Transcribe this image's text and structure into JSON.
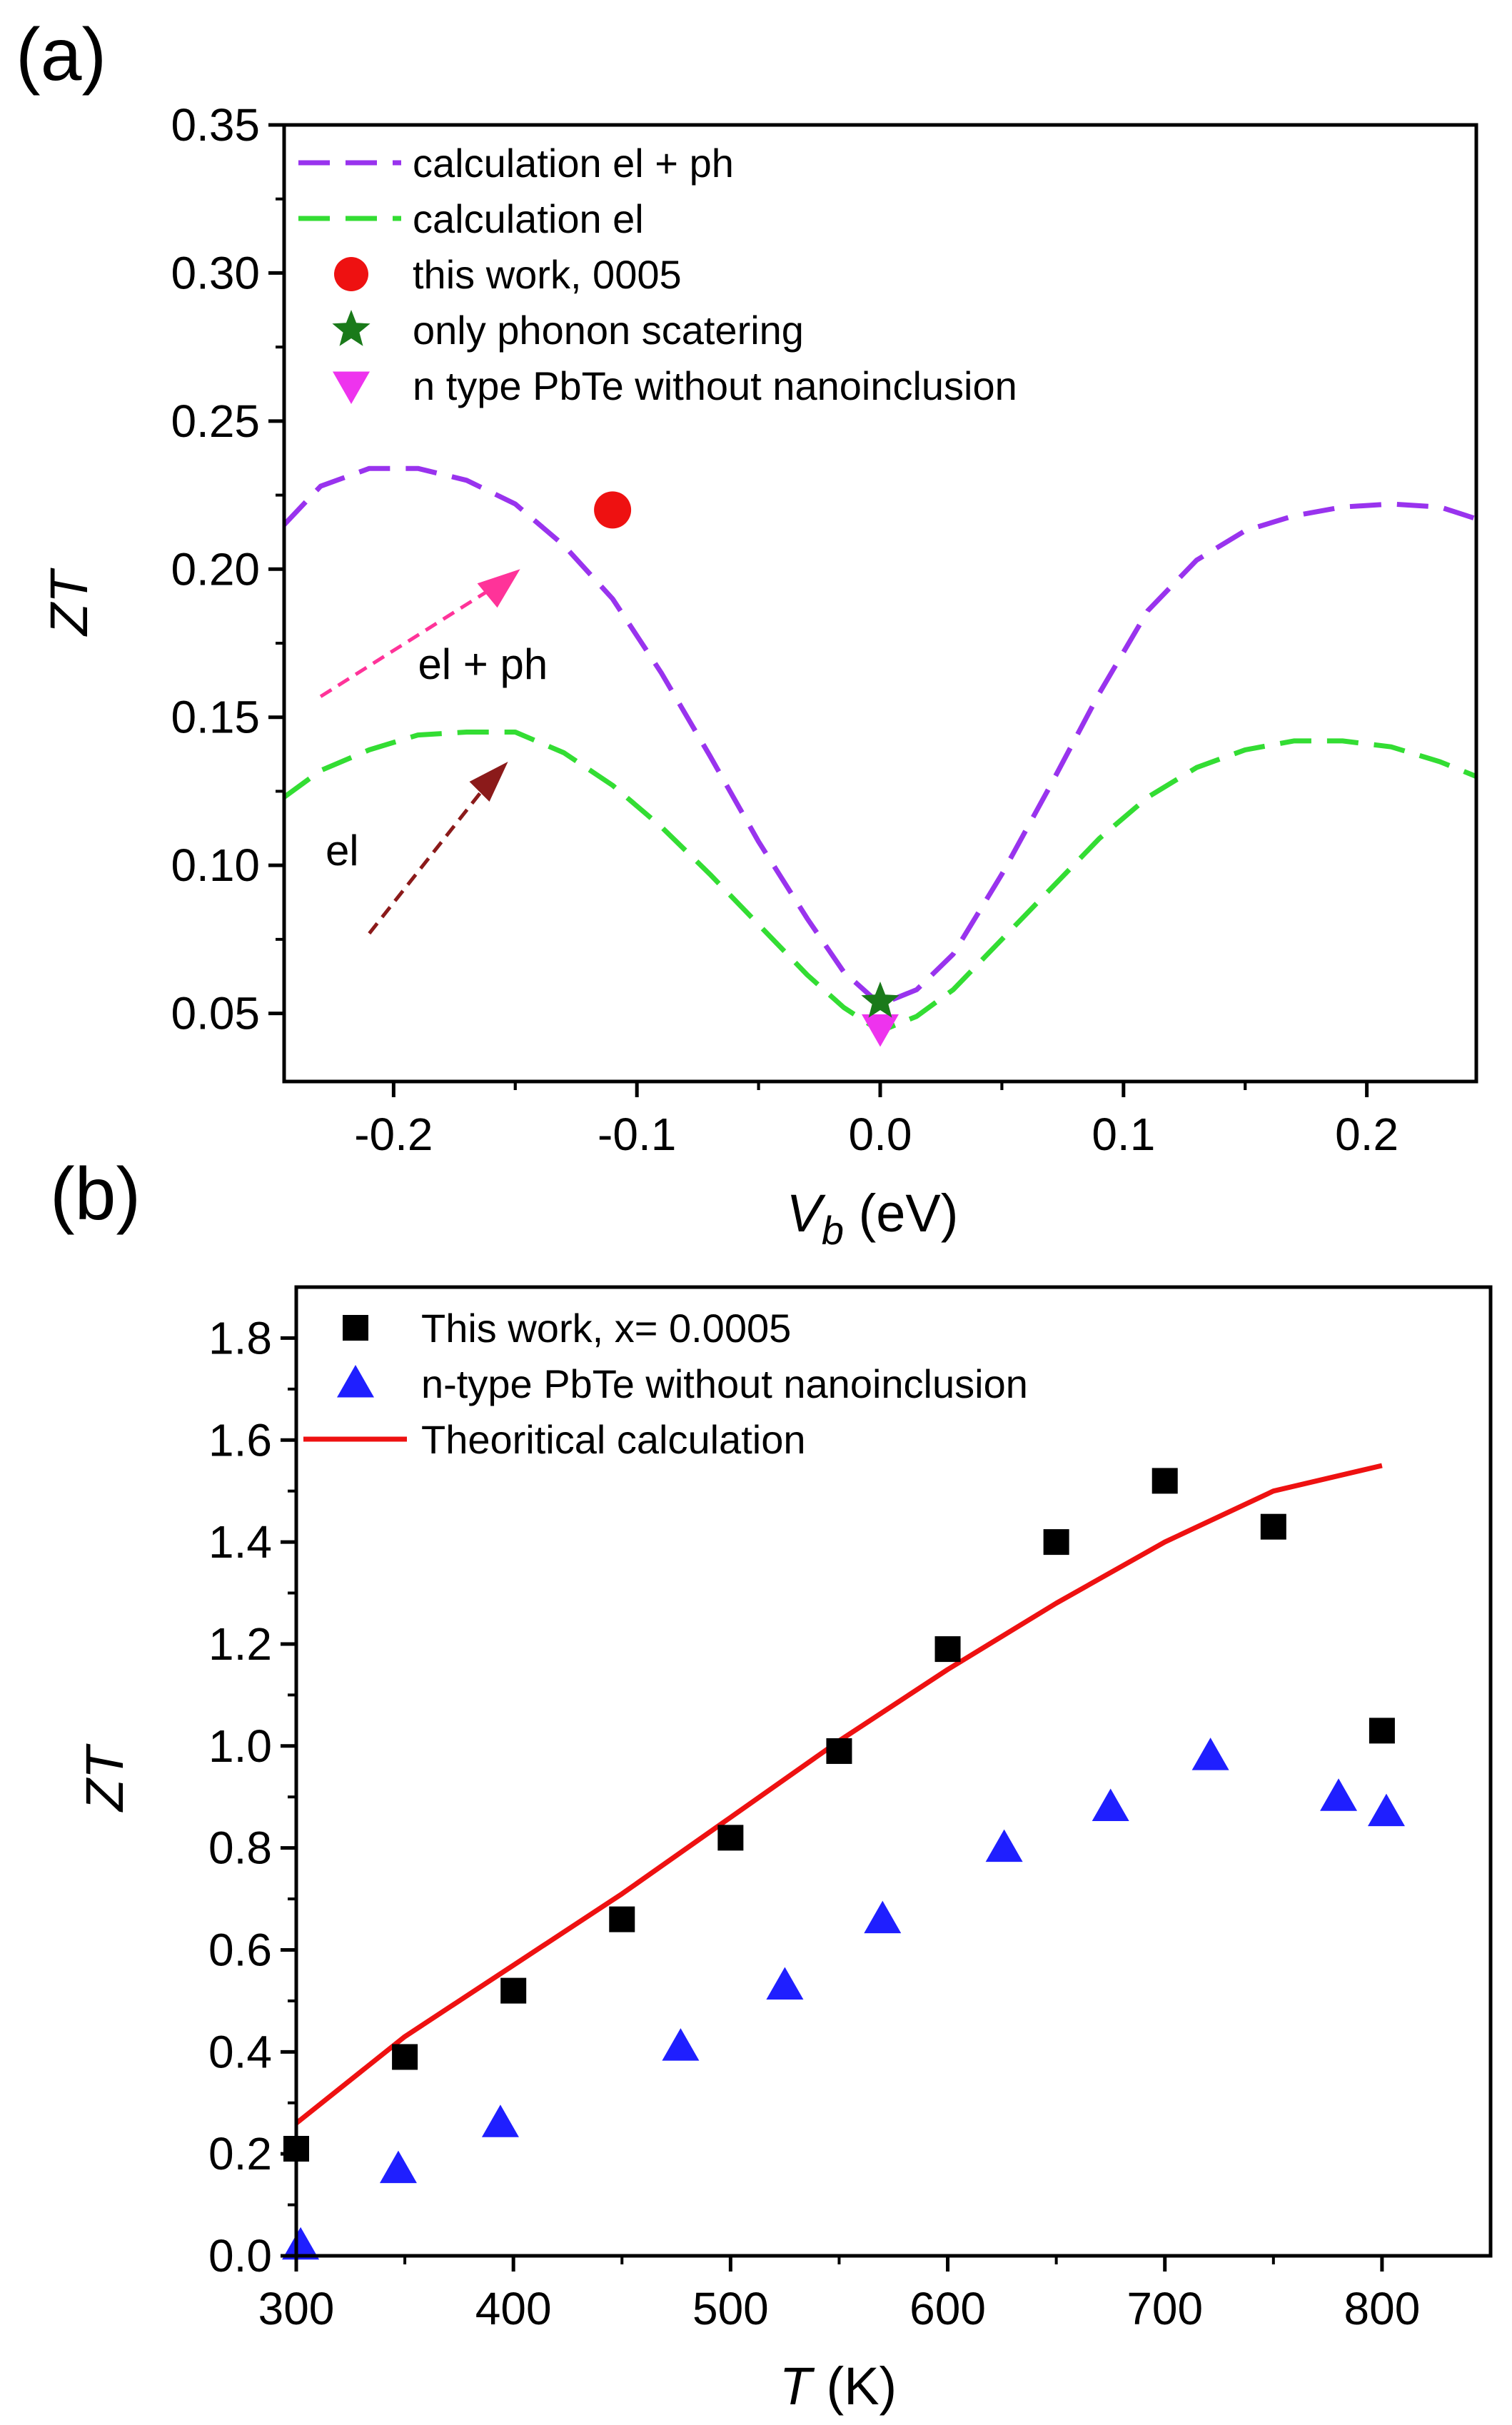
{
  "chart_data": [
    {
      "type": "line",
      "panel_label": "(a)",
      "xlabel_main": "V",
      "xlabel_sub": "b",
      "xlabel_unit": " (eV)",
      "ylabel": "ZT",
      "xlim": [
        -0.245,
        0.245
      ],
      "ylim": [
        0.027,
        0.35
      ],
      "xticks": [
        -0.2,
        -0.1,
        0.0,
        0.1,
        0.2
      ],
      "xtick_labels": [
        "-0.2",
        "-0.1",
        "0.0",
        "0.1",
        "0.2"
      ],
      "yticks": [
        0.05,
        0.1,
        0.15,
        0.2,
        0.25,
        0.3,
        0.35
      ],
      "ytick_labels": [
        "0.05",
        "0.10",
        "0.15",
        "0.20",
        "0.25",
        "0.30",
        "0.35"
      ],
      "legend_position": "top-left",
      "colors": {
        "el_ph": "#9933ee",
        "el": "#33dd33",
        "this_work": "#ee1111",
        "phonon": "#1a7a1a",
        "ntype": "#ee33ee",
        "arrow_ph": "#ff3399",
        "arrow_el": "#8b1a1a"
      },
      "series": [
        {
          "name": "calculation el + ph",
          "style": "dashed",
          "x": [
            -0.245,
            -0.23,
            -0.21,
            -0.19,
            -0.17,
            -0.15,
            -0.13,
            -0.11,
            -0.09,
            -0.07,
            -0.05,
            -0.03,
            -0.015,
            0.0,
            0.015,
            0.03,
            0.05,
            0.07,
            0.09,
            0.11,
            0.13,
            0.15,
            0.17,
            0.19,
            0.21,
            0.23,
            0.245
          ],
          "y": [
            0.215,
            0.228,
            0.234,
            0.234,
            0.23,
            0.222,
            0.208,
            0.19,
            0.165,
            0.137,
            0.108,
            0.082,
            0.064,
            0.053,
            0.058,
            0.07,
            0.097,
            0.127,
            0.158,
            0.186,
            0.203,
            0.213,
            0.218,
            0.221,
            0.222,
            0.221,
            0.217
          ]
        },
        {
          "name": "calculation el",
          "style": "dashed",
          "x": [
            -0.245,
            -0.23,
            -0.21,
            -0.19,
            -0.17,
            -0.15,
            -0.13,
            -0.11,
            -0.09,
            -0.07,
            -0.05,
            -0.03,
            -0.015,
            0.0,
            0.015,
            0.03,
            0.05,
            0.07,
            0.09,
            0.11,
            0.13,
            0.15,
            0.17,
            0.19,
            0.21,
            0.23,
            0.245
          ],
          "y": [
            0.123,
            0.132,
            0.139,
            0.144,
            0.145,
            0.145,
            0.138,
            0.127,
            0.113,
            0.097,
            0.08,
            0.063,
            0.052,
            0.044,
            0.049,
            0.058,
            0.075,
            0.092,
            0.109,
            0.123,
            0.133,
            0.139,
            0.142,
            0.142,
            0.14,
            0.135,
            0.13
          ]
        },
        {
          "name": "this work, 0005",
          "marker": "circle",
          "x": [
            -0.11
          ],
          "y": [
            0.22
          ]
        },
        {
          "name": "only phonon scatering",
          "marker": "star",
          "x": [
            0.0
          ],
          "y": [
            0.054
          ]
        },
        {
          "name": "n type PbTe without nanoinclusion",
          "marker": "triangle-down",
          "x": [
            0.0
          ],
          "y": [
            0.045
          ]
        }
      ],
      "annotations": [
        {
          "text": "el + ph",
          "x": -0.19,
          "y": 0.163,
          "arrow_from": [
            -0.23,
            0.157
          ],
          "arrow_to": [
            -0.148,
            0.2
          ]
        },
        {
          "text": "el",
          "x": -0.228,
          "y": 0.1,
          "arrow_from": [
            -0.21,
            0.077
          ],
          "arrow_to": [
            -0.153,
            0.135
          ]
        }
      ]
    },
    {
      "type": "scatter",
      "panel_label": "(b)",
      "xlabel_main": "T",
      "xlabel_unit": " (K)",
      "ylabel": "ZT",
      "xlim": [
        300,
        850
      ],
      "ylim": [
        0.0,
        1.9
      ],
      "xticks": [
        300,
        400,
        500,
        600,
        700,
        800
      ],
      "xtick_labels": [
        "300",
        "400",
        "500",
        "600",
        "700",
        "800"
      ],
      "yticks": [
        0.0,
        0.2,
        0.4,
        0.6,
        0.8,
        1.0,
        1.2,
        1.4,
        1.6,
        1.8
      ],
      "ytick_labels": [
        "0.0",
        "0.2",
        "0.4",
        "0.6",
        "0.8",
        "1.0",
        "1.2",
        "1.4",
        "1.6",
        "1.8"
      ],
      "legend_position": "top-left",
      "colors": {
        "this_work": "#000000",
        "ntype": "#1f1fff",
        "theory": "#ee1111"
      },
      "series": [
        {
          "name": "This work, x= 0.0005",
          "marker": "square",
          "x": [
            300,
            350,
            400,
            450,
            500,
            550,
            600,
            650,
            700,
            750,
            800
          ],
          "y": [
            0.21,
            0.39,
            0.52,
            0.66,
            0.82,
            0.99,
            1.19,
            1.4,
            1.52,
            1.43,
            1.03
          ]
        },
        {
          "name": "n-type PbTe without nanoinclusion",
          "marker": "triangle-up",
          "x": [
            302,
            347,
            394,
            477,
            525,
            570,
            626,
            675,
            721,
            780,
            802
          ],
          "y": [
            0.02,
            0.17,
            0.26,
            0.41,
            0.53,
            0.66,
            0.8,
            0.88,
            0.98,
            0.9,
            0.87
          ]
        },
        {
          "name": "Theoritical calculation",
          "line": "solid",
          "x": [
            300,
            350,
            400,
            450,
            500,
            550,
            600,
            650,
            700,
            750,
            800
          ],
          "y": [
            0.26,
            0.43,
            0.57,
            0.71,
            0.86,
            1.01,
            1.15,
            1.28,
            1.4,
            1.5,
            1.55
          ]
        }
      ]
    }
  ]
}
